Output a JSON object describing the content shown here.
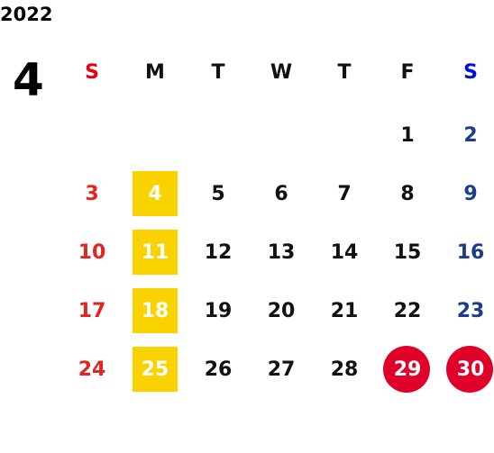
{
  "year": "2022",
  "month": "4",
  "weekdays": [
    "S",
    "M",
    "T",
    "W",
    "T",
    "F",
    "S"
  ],
  "weeks": [
    [
      null,
      null,
      null,
      null,
      null,
      1,
      2
    ],
    [
      3,
      4,
      5,
      6,
      7,
      8,
      9
    ],
    [
      10,
      11,
      12,
      13,
      14,
      15,
      16
    ],
    [
      17,
      18,
      19,
      20,
      21,
      22,
      23
    ],
    [
      24,
      25,
      26,
      27,
      28,
      29,
      30
    ]
  ]
}
